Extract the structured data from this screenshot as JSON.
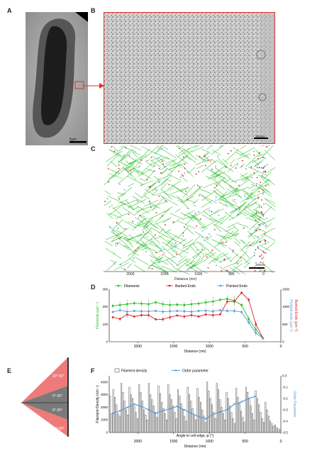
{
  "panels": {
    "a": {
      "label": "A",
      "scalebar": "5µm"
    },
    "b": {
      "label": "B",
      "scalebar": "200nm"
    },
    "c": {
      "label": "C",
      "scalebar": "200nm",
      "xlabel": "Distance (nm)",
      "ticks": [
        "2000",
        "1500",
        "1000",
        "500",
        "0"
      ]
    },
    "d": {
      "label": "D"
    },
    "e": {
      "label": "E",
      "wedges": [
        "20°-55°",
        "0°-20°",
        "0°-20°",
        "20°-55°"
      ]
    },
    "f": {
      "label": "F"
    }
  },
  "colors": {
    "filaments": "#22bb22",
    "barbed": "#dd2222",
    "pointed": "#5a9bd8",
    "box": "#e03030"
  },
  "chart_data": [
    {
      "type": "line",
      "xlabel": "Distance (nm)",
      "ylabel_left": "Filaments (µm⁻¹)",
      "ylabel_right": "Barbed Ends (µm⁻²)",
      "ylabel_right2": "Pointed ends (µm⁻²)",
      "x_ticks": [
        "2000",
        "1500",
        "1000",
        "500",
        "0"
      ],
      "y_left_ticks": [
        "0",
        "100",
        "200",
        "300"
      ],
      "y_right_ticks": [
        "0",
        "500",
        "1000",
        "1500"
      ],
      "xlim": [
        2400,
        0
      ],
      "ylim_left": [
        0,
        300
      ],
      "ylim_right": [
        0,
        1500
      ],
      "series": [
        {
          "name": "Filaments",
          "axis": "left",
          "x": [
            2350,
            2250,
            2150,
            2050,
            1950,
            1850,
            1750,
            1650,
            1550,
            1450,
            1350,
            1250,
            1150,
            1050,
            950,
            850,
            750,
            650,
            550,
            450,
            350,
            250
          ],
          "values": [
            205,
            210,
            215,
            220,
            218,
            215,
            225,
            215,
            210,
            212,
            210,
            215,
            218,
            225,
            230,
            240,
            245,
            235,
            210,
            130,
            70,
            20
          ]
        },
        {
          "name": "Barbed Ends",
          "axis": "right",
          "x": [
            2350,
            2250,
            2150,
            2050,
            1950,
            1850,
            1750,
            1650,
            1550,
            1450,
            1350,
            1250,
            1150,
            1050,
            950,
            850,
            750,
            650,
            550,
            450,
            350,
            250
          ],
          "values": [
            700,
            650,
            780,
            720,
            760,
            760,
            640,
            640,
            700,
            750,
            720,
            760,
            720,
            780,
            760,
            780,
            1150,
            1150,
            1400,
            1200,
            500,
            100
          ]
        },
        {
          "name": "Pointed Ends",
          "axis": "right",
          "x": [
            2350,
            2250,
            2150,
            2050,
            1950,
            1850,
            1750,
            1650,
            1550,
            1450,
            1350,
            1250,
            1150,
            1050,
            950,
            850,
            750,
            650,
            550,
            450,
            350,
            250
          ],
          "values": [
            850,
            900,
            860,
            880,
            870,
            870,
            880,
            860,
            870,
            880,
            870,
            860,
            880,
            890,
            870,
            900,
            880,
            880,
            850,
            550,
            250,
            100
          ]
        }
      ]
    },
    {
      "type": "bar",
      "xlabel": "Distance (nm)",
      "xlabel2": "Angle to cell edge, φ (°)",
      "ylabel_left": "Filament Density (nm⁻¹)",
      "ylabel_right": "Order Parameter",
      "x_ticks": [
        "2000",
        "1500",
        "1000",
        "500",
        "0"
      ],
      "y_left_ticks": [
        "0",
        "1000",
        "2000",
        "3000",
        "4000"
      ],
      "y_right_ticks": [
        "-0.5",
        "-0.4",
        "-0.3",
        "-0.2",
        "-0.1",
        "0.0"
      ],
      "ylim_left": [
        0,
        4500
      ],
      "ylim_right": [
        -0.5,
        0
      ],
      "series": [
        {
          "name": "Filament density",
          "axis": "left",
          "values": [
            2900,
            1500,
            3400,
            2800,
            2200,
            1500,
            1300,
            3900,
            3200,
            2500,
            1800,
            1400,
            3600,
            3000,
            2700,
            2100,
            1600,
            1100,
            3800,
            3200,
            2500,
            1800,
            1400,
            1000,
            3900,
            3000,
            2600,
            2100,
            1600,
            1200,
            3700,
            3100,
            2400,
            1900,
            1500,
            1000,
            3800,
            3000,
            2600,
            2100,
            1600,
            1100,
            3400,
            2900,
            2300,
            1800,
            1300,
            900,
            3600,
            3000,
            2500,
            1900,
            1400,
            1000,
            3500,
            2800,
            2400,
            1800,
            1300,
            800,
            4000,
            3300,
            2700,
            2200,
            1600,
            1100,
            3900,
            3400,
            2600,
            2000,
            1500,
            1000,
            3200,
            2700,
            2100,
            1600,
            1100,
            700,
            3500,
            2800,
            2300,
            1700,
            1200,
            800,
            3600,
            3200,
            2600,
            2100,
            1500,
            1000,
            3300,
            2700,
            2200,
            1600,
            1100,
            800,
            2400,
            1800,
            1300,
            900,
            700,
            500,
            600,
            400,
            300,
            200
          ]
        },
        {
          "name": "Order parameter",
          "axis": "right",
          "x": [
            2350,
            2250,
            2150,
            2050,
            1950,
            1850,
            1750,
            1650,
            1550,
            1450,
            1350,
            1250,
            1150,
            1050,
            950,
            850,
            750,
            650,
            550,
            450,
            350
          ],
          "values": [
            -0.33,
            -0.31,
            -0.28,
            -0.25,
            -0.27,
            -0.3,
            -0.33,
            -0.31,
            -0.29,
            -0.27,
            -0.3,
            -0.33,
            -0.36,
            -0.38,
            -0.34,
            -0.32,
            -0.3,
            -0.25,
            -0.23,
            -0.2,
            -0.18
          ]
        }
      ]
    }
  ],
  "legendD": [
    "Filaments",
    "Barbed Ends",
    "Pointed Ends"
  ],
  "legendF": [
    "Filament density",
    "Order parameter"
  ]
}
